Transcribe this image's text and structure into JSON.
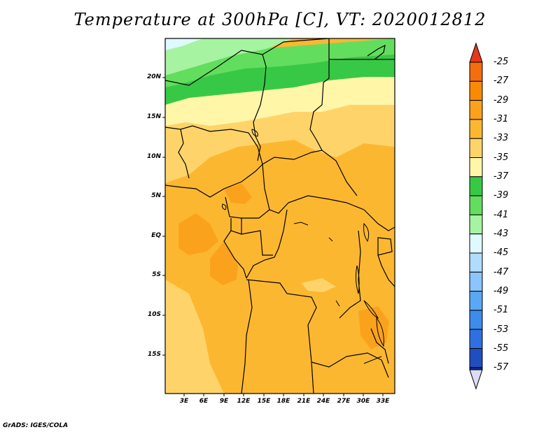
{
  "title": "Temperature at 300hPa [C], VT: 2020012812",
  "credit": "GrADS: IGES/COLA",
  "map": {
    "lat_labels": [
      "20N",
      "15N",
      "10N",
      "5N",
      "EQ",
      "5S",
      "10S",
      "15S"
    ],
    "lon_labels": [
      "3E",
      "6E",
      "9E",
      "12E",
      "15E",
      "18E",
      "21E",
      "24E",
      "27E",
      "30E",
      "33E"
    ]
  },
  "colorbar": {
    "labels": [
      "-25",
      "-27",
      "-29",
      "-31",
      "-33",
      "-35",
      "-37",
      "-39",
      "-41",
      "-43",
      "-45",
      "-47",
      "-49",
      "-51",
      "-53",
      "-55",
      "-57"
    ],
    "colors": [
      "#f46d0f",
      "#f88a06",
      "#fba21d",
      "#fcb731",
      "#fed46a",
      "#fff6a8",
      "#37c946",
      "#63dd5e",
      "#a6f3a1",
      "#def9ff",
      "#b2dcff",
      "#8ac6fb",
      "#5aa8f4",
      "#3d8ce9",
      "#2f70e0",
      "#1f4fbe",
      "#0f2e93"
    ],
    "top_color": "#e3391b",
    "bottom_color": "#dcdcf7"
  }
}
